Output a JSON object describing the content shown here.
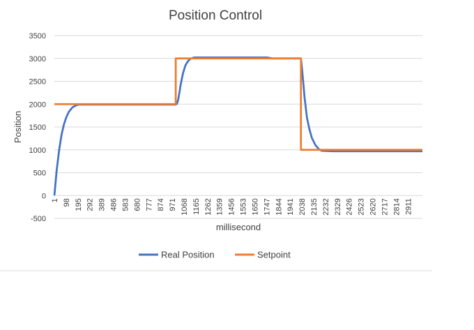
{
  "chart_data": {
    "type": "line",
    "title": "Position Control",
    "xlabel": "millisecond",
    "ylabel": "Position",
    "ylim": [
      -500,
      3500
    ],
    "yticks": [
      -500,
      0,
      500,
      1000,
      1500,
      2000,
      2500,
      3000,
      3500
    ],
    "xlim": [
      1,
      3030
    ],
    "xticks": [
      1,
      98,
      195,
      292,
      389,
      486,
      583,
      680,
      777,
      874,
      971,
      1068,
      1165,
      1262,
      1359,
      1456,
      1553,
      1650,
      1747,
      1844,
      1941,
      2038,
      2135,
      2232,
      2329,
      2426,
      2523,
      2620,
      2717,
      2814,
      2911
    ],
    "grid": true,
    "legend_position": "bottom",
    "series": [
      {
        "name": "Real Position",
        "color": "#4472c4",
        "x": [
          1,
          20,
          40,
          60,
          80,
          100,
          120,
          150,
          180,
          200,
          300,
          500,
          700,
          900,
          1000,
          1010,
          1020,
          1030,
          1040,
          1060,
          1080,
          1100,
          1120,
          1150,
          1200,
          1400,
          1600,
          1750,
          1800,
          2000,
          2030,
          2040,
          2050,
          2060,
          2080,
          2100,
          2120,
          2150,
          2180,
          2200,
          2300,
          2500,
          2700,
          2900,
          3030
        ],
        "y": [
          0,
          550,
          990,
          1330,
          1560,
          1720,
          1830,
          1930,
          1975,
          1990,
          1990,
          1990,
          1990,
          1990,
          1990,
          2010,
          2100,
          2250,
          2420,
          2680,
          2850,
          2940,
          2990,
          3020,
          3020,
          3020,
          3020,
          3020,
          3000,
          3000,
          3000,
          2750,
          2450,
          2150,
          1700,
          1450,
          1260,
          1100,
          1010,
          980,
          970,
          970,
          970,
          970,
          970
        ]
      },
      {
        "name": "Setpoint",
        "color": "#ed7d31",
        "x": [
          1,
          1000,
          1000,
          2030,
          2030,
          3030
        ],
        "y": [
          2000,
          2000,
          3000,
          3000,
          1000,
          1000
        ]
      }
    ]
  }
}
